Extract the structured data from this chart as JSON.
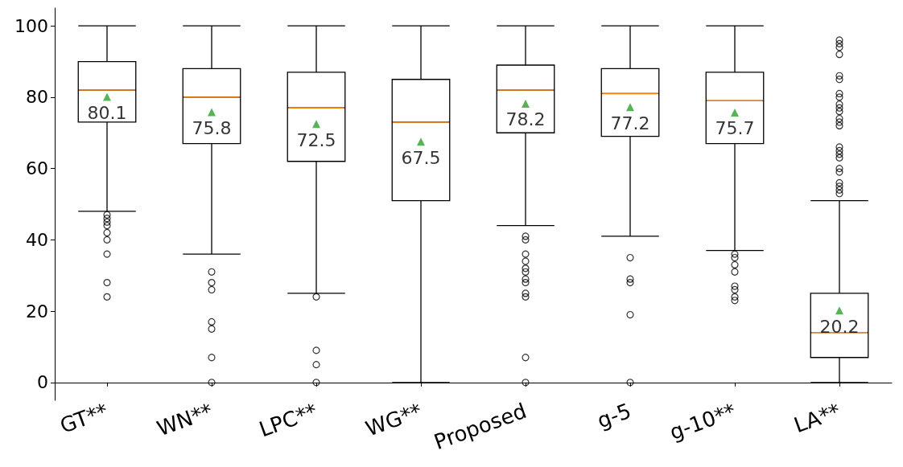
{
  "chart_data": {
    "type": "box",
    "categories": [
      "GT**",
      "WN**",
      "LPC**",
      "WG**",
      "Proposed",
      "g-5",
      "g-10**",
      "LA**"
    ],
    "series": [
      {
        "color": "#000000",
        "boxes": [
          {
            "low": 48,
            "q1": 73,
            "median": 82,
            "q3": 90,
            "high": 100,
            "outliers": [
              47,
              46,
              45,
              44,
              42,
              40,
              36,
              28,
              24
            ]
          },
          {
            "low": 36,
            "q1": 67,
            "median": 80,
            "q3": 88,
            "high": 100,
            "outliers": [
              31,
              28,
              26,
              17,
              15,
              7,
              0
            ]
          },
          {
            "low": 25,
            "q1": 62,
            "median": 77,
            "q3": 87,
            "high": 100,
            "outliers": [
              24,
              9,
              5,
              0
            ]
          },
          {
            "low": 0,
            "q1": 51,
            "median": 73,
            "q3": 85,
            "high": 100
          },
          {
            "low": 44,
            "q1": 70,
            "median": 82,
            "q3": 89,
            "high": 100,
            "outliers": [
              41,
              40,
              36,
              34,
              32,
              31,
              29,
              28,
              25,
              24,
              7,
              0
            ]
          },
          {
            "low": 41,
            "q1": 69,
            "median": 81,
            "q3": 88,
            "high": 100,
            "outliers": [
              35,
              29,
              28,
              19,
              0
            ]
          },
          {
            "low": 37,
            "q1": 67,
            "median": 79,
            "q3": 87,
            "high": 100,
            "outliers": [
              36,
              35,
              33,
              31,
              27,
              26,
              24,
              23
            ]
          },
          {
            "low": 0,
            "q1": 7,
            "median": 14,
            "q3": 25,
            "high": 51,
            "outliers": [
              96,
              95,
              94,
              92,
              86,
              85,
              81,
              80,
              78,
              77,
              76,
              74,
              73,
              72,
              66,
              65,
              64,
              63,
              60,
              59,
              56,
              55,
              54,
              53
            ]
          }
        ]
      },
      {
        "type": "scatter",
        "color": "#2ca02c",
        "x": [
          "GT**",
          "WN**",
          "LPC**",
          "WG**",
          "Proposed",
          "g-5",
          "g-10**",
          "LA**"
        ],
        "values": [
          80.1,
          75.8,
          72.5,
          67.5,
          78.2,
          77.2,
          75.7,
          20.2
        ]
      }
    ],
    "ylim": [
      -5,
      105
    ],
    "yticks": [
      0,
      20,
      40,
      60,
      80,
      100
    ],
    "data_labels": true,
    "grid": false,
    "marker": "triangle"
  }
}
